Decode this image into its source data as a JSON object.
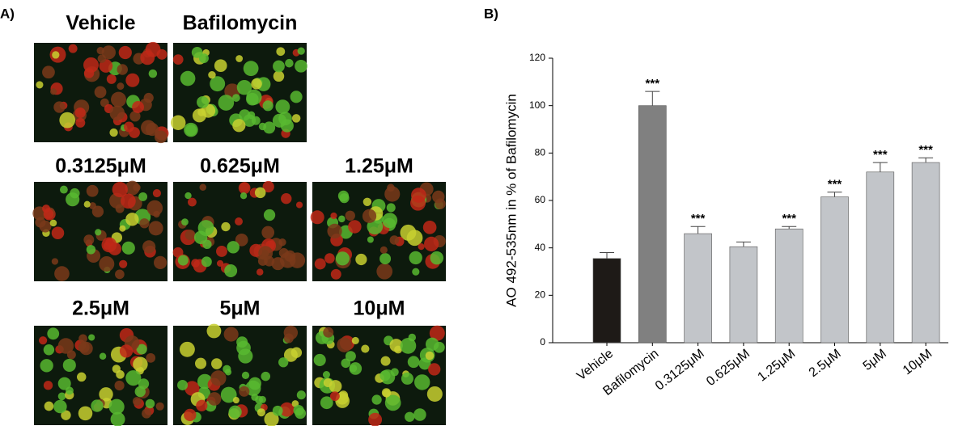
{
  "panel_a": {
    "label": "A)",
    "images": [
      {
        "label": "Vehicle"
      },
      {
        "label": "Bafilomycin"
      },
      {
        "label": "0.3125μM"
      },
      {
        "label": "0.625μM"
      },
      {
        "label": "1.25μM"
      },
      {
        "label": "2.5μM"
      },
      {
        "label": "5μM"
      },
      {
        "label": "10μM"
      }
    ]
  },
  "chart_data": {
    "type": "bar",
    "panel_label": "B)",
    "ylabel": "AO 492-535nm in % of Bafilomycin",
    "categories": [
      "Vehicle",
      "Bafilomycin",
      "0.3125μM",
      "0.625μM",
      "1.25μM",
      "2.5μM",
      "5μM",
      "10μM"
    ],
    "values": [
      35.5,
      100,
      46,
      40.5,
      48,
      61.5,
      72,
      76
    ],
    "errors": [
      2.5,
      6,
      3,
      2,
      1,
      2,
      4,
      2
    ],
    "colors": [
      "#1e1a17",
      "#808080",
      "#c2c5c9",
      "#c2c5c9",
      "#c2c5c9",
      "#c2c5c9",
      "#c2c5c9",
      "#c2c5c9"
    ],
    "annotations": [
      null,
      "***",
      "***",
      null,
      "***",
      "***",
      "***",
      "***"
    ],
    "ylim": [
      0,
      120
    ],
    "yticks": [
      0,
      20,
      40,
      60,
      80,
      100,
      120
    ]
  }
}
